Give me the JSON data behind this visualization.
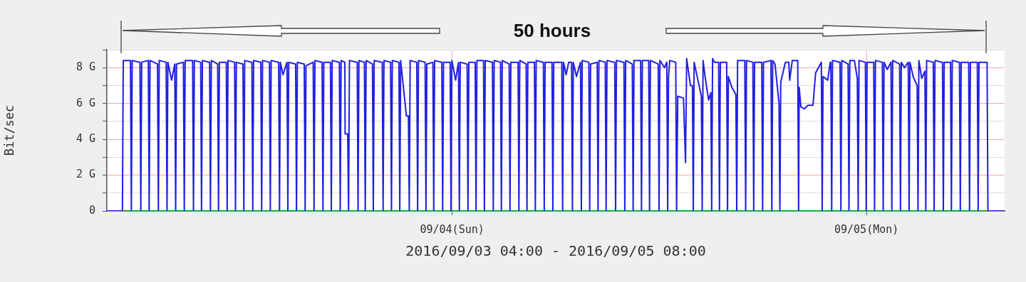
{
  "chart_data": {
    "type": "line",
    "xlabel": "2016/09/03 04:00 - 2016/09/05 08:00",
    "ylabel": "Bit/sec",
    "annotations": [
      "50 hours"
    ],
    "xlim": [
      "2016-09-03T04:00",
      "2016-09-05T08:00"
    ],
    "xticks": [
      {
        "value": "2016-09-04",
        "label": "09/04(Sun)"
      },
      {
        "value": "2016-09-05",
        "label": "09/05(Mon)"
      }
    ],
    "ylim": [
      0,
      9
    ],
    "yticks": [
      {
        "value": 0,
        "label": "0"
      },
      {
        "value": 1,
        "label": null
      },
      {
        "value": 2,
        "label": "2 G"
      },
      {
        "value": 3,
        "label": null
      },
      {
        "value": 4,
        "label": "4 G"
      },
      {
        "value": 5,
        "label": null
      },
      {
        "value": 6,
        "label": "6 G"
      },
      {
        "value": 7,
        "label": null
      },
      {
        "value": 8,
        "label": "8 G"
      },
      {
        "value": 9,
        "label": null
      }
    ],
    "grid": true,
    "marker": "none",
    "line_style": "solid",
    "series": [
      {
        "color": "#00a000",
        "x": [
          "2016-09-03T04:00",
          "2016-09-05T08:00"
        ],
        "values": [
          0,
          0
        ]
      },
      {
        "color": "#1f1fe0",
        "x": [
          "2016-09-03T04:00",
          "2016-09-03T04:54",
          "2016-09-03T04:57",
          "2016-09-03T05:22",
          "2016-09-03T05:25",
          "2016-09-03T05:28",
          "2016-09-03T05:55",
          "2016-09-03T05:58",
          "2016-09-03T06:01",
          "2016-09-03T06:24",
          "2016-09-03T06:27",
          "2016-09-03T06:30",
          "2016-09-03T06:56",
          "2016-09-03T06:59",
          "2016-09-03T07:02",
          "2016-09-03T07:26",
          "2016-09-03T07:29",
          "2016-09-03T07:32",
          "2016-09-03T07:45",
          "2016-09-03T07:56",
          "2016-09-03T07:59",
          "2016-09-03T08:02",
          "2016-09-03T08:26",
          "2016-09-03T08:29",
          "2016-09-03T08:32",
          "2016-09-03T08:58",
          "2016-09-03T09:01",
          "2016-09-03T09:04",
          "2016-09-03T09:26",
          "2016-09-03T09:29",
          "2016-09-03T09:32",
          "2016-09-03T09:57",
          "2016-09-03T10:00",
          "2016-09-03T10:03",
          "2016-09-03T10:25",
          "2016-09-03T10:28",
          "2016-09-03T10:31",
          "2016-09-03T10:55",
          "2016-09-03T10:58",
          "2016-09-03T11:01",
          "2016-09-03T11:24",
          "2016-09-03T11:27",
          "2016-09-03T11:30",
          "2016-09-03T11:53",
          "2016-09-03T11:56",
          "2016-09-03T11:59",
          "2016-09-03T12:24",
          "2016-09-03T12:27",
          "2016-09-03T12:30",
          "2016-09-03T12:55",
          "2016-09-03T12:58",
          "2016-09-03T13:01",
          "2016-09-03T13:25",
          "2016-09-03T13:28",
          "2016-09-03T13:31",
          "2016-09-03T13:57",
          "2016-09-03T14:00",
          "2016-09-03T14:03",
          "2016-09-03T14:12",
          "2016-09-03T14:26",
          "2016-09-03T14:29",
          "2016-09-03T14:32",
          "2016-09-03T14:56",
          "2016-09-03T14:59",
          "2016-09-03T15:02",
          "2016-09-03T15:26",
          "2016-09-03T15:29",
          "2016-09-03T15:32",
          "2016-09-03T15:57",
          "2016-09-03T16:00",
          "2016-09-03T16:03",
          "2016-09-03T16:28",
          "2016-09-03T16:31",
          "2016-09-03T16:34",
          "2016-09-03T16:57",
          "2016-09-03T17:00",
          "2016-09-03T17:03",
          "2016-09-03T17:28",
          "2016-09-03T17:31",
          "2016-09-03T17:34",
          "2016-09-03T17:47",
          "2016-09-03T17:48",
          "2016-09-03T17:57",
          "2016-09-03T18:00",
          "2016-09-03T18:03",
          "2016-09-03T18:30",
          "2016-09-03T18:33",
          "2016-09-03T18:36",
          "2016-09-03T18:55",
          "2016-09-03T18:58",
          "2016-09-03T19:01",
          "2016-09-03T19:23",
          "2016-09-03T19:26",
          "2016-09-03T19:29",
          "2016-09-03T19:57",
          "2016-09-03T20:00",
          "2016-09-03T20:03",
          "2016-09-03T20:26",
          "2016-09-03T20:29",
          "2016-09-03T20:32",
          "2016-09-03T20:55",
          "2016-09-03T20:58",
          "2016-09-03T21:01",
          "2016-09-03T21:21",
          "2016-09-03T21:28",
          "2016-09-03T21:31",
          "2016-09-03T21:34",
          "2016-09-03T21:57",
          "2016-09-03T22:00",
          "2016-09-03T22:03",
          "2016-09-03T22:26",
          "2016-09-03T22:29",
          "2016-09-03T22:32",
          "2016-09-03T22:53",
          "2016-09-03T22:56",
          "2016-09-03T22:59",
          "2016-09-03T23:24",
          "2016-09-03T23:27",
          "2016-09-03T23:30",
          "2016-09-03T23:53",
          "2016-09-03T23:56",
          "2016-09-03T23:59",
          "2016-09-04T00:12",
          "2016-09-04T00:22",
          "2016-09-04T00:25",
          "2016-09-04T00:28",
          "2016-09-04T00:52",
          "2016-09-04T00:55",
          "2016-09-04T00:58",
          "2016-09-04T01:20",
          "2016-09-04T01:23",
          "2016-09-04T01:26",
          "2016-09-04T01:49",
          "2016-09-04T01:52",
          "2016-09-04T01:55",
          "2016-09-04T02:20",
          "2016-09-04T02:23",
          "2016-09-04T02:26",
          "2016-09-04T02:48",
          "2016-09-04T02:51",
          "2016-09-04T02:54",
          "2016-09-04T03:18",
          "2016-09-04T03:21",
          "2016-09-04T03:24",
          "2016-09-04T03:49",
          "2016-09-04T03:52",
          "2016-09-04T03:55",
          "2016-09-04T04:17",
          "2016-09-04T04:20",
          "2016-09-04T04:23",
          "2016-09-04T04:46",
          "2016-09-04T04:49",
          "2016-09-04T04:52",
          "2016-09-04T05:17",
          "2016-09-04T05:20",
          "2016-09-04T05:23",
          "2016-09-04T05:47",
          "2016-09-04T05:50",
          "2016-09-04T05:53",
          "2016-09-04T06:21",
          "2016-09-04T06:24",
          "2016-09-04T06:27",
          "2016-09-04T06:36",
          "2016-09-04T06:45",
          "2016-09-04T06:55",
          "2016-09-04T06:58",
          "2016-09-04T07:01",
          "2016-09-04T07:12",
          "2016-09-04T07:26",
          "2016-09-04T07:29",
          "2016-09-04T07:32",
          "2016-09-04T07:55",
          "2016-09-04T07:58",
          "2016-09-04T08:01",
          "2016-09-04T08:24",
          "2016-09-04T08:27",
          "2016-09-04T08:30",
          "2016-09-04T08:52",
          "2016-09-04T08:55",
          "2016-09-04T08:58",
          "2016-09-04T09:25",
          "2016-09-04T09:28",
          "2016-09-04T09:31",
          "2016-09-04T09:57",
          "2016-09-04T10:00",
          "2016-09-04T10:03",
          "2016-09-04T10:26",
          "2016-09-04T10:29",
          "2016-09-04T10:32",
          "2016-09-04T10:55",
          "2016-09-04T10:58",
          "2016-09-04T11:01",
          "2016-09-04T11:23",
          "2016-09-04T11:26",
          "2016-09-04T11:29",
          "2016-09-04T11:56",
          "2016-09-04T11:59",
          "2016-09-04T12:02",
          "2016-09-04T12:18",
          "2016-09-04T12:26",
          "2016-09-04T12:29",
          "2016-09-04T12:32",
          "2016-09-04T12:36",
          "2016-09-04T12:57",
          "2016-09-04T13:00",
          "2016-09-04T13:04",
          "2016-09-04T13:24",
          "2016-09-04T13:31",
          "2016-09-04T13:35",
          "2016-09-04T13:48",
          "2016-09-04T13:55",
          "2016-09-04T13:58",
          "2016-09-04T14:01",
          "2016-09-04T14:26",
          "2016-09-04T14:29",
          "2016-09-04T14:32",
          "2016-09-04T14:39",
          "2016-09-04T14:51",
          "2016-09-04T14:59",
          "2016-09-04T15:02",
          "2016-09-04T15:05",
          "2016-09-04T15:12",
          "2016-09-04T15:26",
          "2016-09-04T15:29",
          "2016-09-04T15:32",
          "2016-09-04T15:54",
          "2016-09-04T15:57",
          "2016-09-04T16:00",
          "2016-09-04T16:12",
          "2016-09-04T16:26",
          "2016-09-04T16:29",
          "2016-09-04T16:32",
          "2016-09-04T16:57",
          "2016-09-04T17:00",
          "2016-09-04T17:03",
          "2016-09-04T17:25",
          "2016-09-04T17:28",
          "2016-09-04T17:31",
          "2016-09-04T17:56",
          "2016-09-04T17:59",
          "2016-09-04T18:02",
          "2016-09-04T18:28",
          "2016-09-04T18:31",
          "2016-09-04T18:34",
          "2016-09-04T18:42",
          "2016-09-04T18:56",
          "2016-09-04T18:59",
          "2016-09-04T19:02",
          "2016-09-04T19:18",
          "2016-09-04T19:30",
          "2016-09-04T19:33",
          "2016-09-04T19:42",
          "2016-09-04T20:01",
          "2016-09-04T20:04",
          "2016-09-04T20:06",
          "2016-09-04T20:12",
          "2016-09-04T20:24",
          "2016-09-04T20:36",
          "2016-09-04T20:54",
          "2016-09-04T21:03",
          "2016-09-04T21:23",
          "2016-09-04T21:26",
          "2016-09-04T21:29",
          "2016-09-04T21:45",
          "2016-09-04T21:54",
          "2016-09-04T21:56",
          "2016-09-04T21:59",
          "2016-09-04T22:02",
          "2016-09-04T22:28",
          "2016-09-04T22:31",
          "2016-09-04T22:34",
          "2016-09-04T22:56",
          "2016-09-04T22:59",
          "2016-09-04T23:02",
          "2016-09-04T23:18",
          "2016-09-04T23:28",
          "2016-09-04T23:31",
          "2016-09-04T23:34",
          "2016-09-04T23:56",
          "2016-09-04T23:59",
          "2016-09-05T00:02",
          "2016-09-05T00:25",
          "2016-09-05T00:28",
          "2016-09-05T00:31",
          "2016-09-05T00:55",
          "2016-09-05T00:58",
          "2016-09-05T01:01",
          "2016-09-05T01:12",
          "2016-09-05T01:25",
          "2016-09-05T01:28",
          "2016-09-05T01:31",
          "2016-09-05T01:55",
          "2016-09-05T01:58",
          "2016-09-05T02:01",
          "2016-09-05T02:12",
          "2016-09-05T02:25",
          "2016-09-05T02:28",
          "2016-09-05T02:31",
          "2016-09-05T02:42",
          "2016-09-05T02:56",
          "2016-09-05T02:59",
          "2016-09-05T03:02",
          "2016-09-05T03:12",
          "2016-09-05T03:23",
          "2016-09-05T03:26",
          "2016-09-05T03:29",
          "2016-09-05T03:52",
          "2016-09-05T03:55",
          "2016-09-05T03:58",
          "2016-09-05T04:24",
          "2016-09-05T04:27",
          "2016-09-05T04:30",
          "2016-09-05T04:52",
          "2016-09-05T04:55",
          "2016-09-05T04:58",
          "2016-09-05T05:23",
          "2016-09-05T05:26",
          "2016-09-05T05:29",
          "2016-09-05T05:55",
          "2016-09-05T05:58",
          "2016-09-05T06:01",
          "2016-09-05T06:25",
          "2016-09-05T06:28",
          "2016-09-05T06:31",
          "2016-09-05T06:59",
          "2016-09-05T07:02",
          "2016-09-05T08:00"
        ],
        "values": [
          0,
          0,
          8.4,
          8.4,
          0,
          8.4,
          8.3,
          0,
          8.3,
          8.4,
          0,
          8.4,
          8.2,
          0,
          8.4,
          8.3,
          0,
          8.3,
          7.3,
          8.2,
          0,
          8.2,
          8.3,
          0,
          8.4,
          8.4,
          0,
          8.4,
          8.3,
          0,
          8.4,
          8.3,
          0,
          8.4,
          8.2,
          0,
          8.3,
          8.3,
          0,
          8.4,
          8.3,
          0,
          8.3,
          8.2,
          0,
          8.4,
          8.3,
          0,
          8.4,
          8.3,
          0,
          8.4,
          8.3,
          0,
          8.4,
          8.3,
          0,
          8.3,
          7.6,
          8.3,
          0,
          8.3,
          8.2,
          0,
          8.3,
          8.2,
          0,
          8.1,
          8.3,
          0,
          8.4,
          8.3,
          0,
          8.3,
          8.3,
          0,
          8.4,
          8.3,
          0,
          8.4,
          8.3,
          4.3,
          4.3,
          0,
          8.4,
          8.3,
          0,
          8.4,
          8.3,
          0,
          8.4,
          8.2,
          0,
          8.4,
          8.3,
          0,
          8.4,
          8.3,
          0,
          8.4,
          8.3,
          0,
          8.4,
          5.3,
          5.3,
          0,
          8.4,
          8.3,
          0,
          8.4,
          8.3,
          0,
          8.2,
          8.3,
          0,
          8.4,
          8.3,
          0,
          8.3,
          8.3,
          0,
          8.4,
          7.3,
          8.3,
          0,
          8.3,
          8.2,
          0,
          8.3,
          8.3,
          0,
          8.4,
          8.4,
          0,
          8.4,
          8.3,
          0,
          8.4,
          8.3,
          0,
          8.4,
          8.2,
          0,
          8.3,
          8.3,
          0,
          8.4,
          8.2,
          0,
          8.3,
          8.3,
          0,
          8.4,
          8.3,
          0,
          8.3,
          8.3,
          0,
          8.3,
          8.3,
          0,
          8.3,
          7.6,
          8.3,
          8.3,
          0,
          8.3,
          7.5,
          8.3,
          0,
          8.4,
          8.3,
          0,
          8.2,
          8.3,
          0,
          8.4,
          8.3,
          0,
          8.4,
          8.3,
          0,
          8.4,
          8.3,
          0,
          8.4,
          8.2,
          0,
          8.4,
          8.4,
          0,
          8.4,
          8.4,
          0,
          8.4,
          8.2,
          0,
          8.4,
          8,
          8.3,
          0,
          7.5,
          8.4,
          8.3,
          0,
          6.4,
          6.3,
          2.7,
          8.5,
          7,
          7,
          0,
          8.3,
          6.4,
          0,
          8.4,
          7.5,
          6.2,
          6.6,
          0,
          8.5,
          8.3,
          8.3,
          0,
          8.3,
          8.3,
          0,
          7.5,
          6.9,
          6.5,
          0,
          8.4,
          8.4,
          0,
          8.4,
          8.3,
          0,
          8.3,
          8.3,
          0,
          8.3,
          8.4,
          0,
          8.4,
          8.2,
          6,
          0,
          7.2,
          8.3,
          8.3,
          7.3,
          8.4,
          8.4,
          0,
          6.9,
          5.8,
          5.7,
          5.9,
          5.9,
          7.7,
          8.3,
          0,
          7.5,
          7.3,
          8.3,
          8.3,
          0,
          8.4,
          8.3,
          0,
          8.4,
          8.2,
          0,
          8.4,
          8.4,
          7.4,
          0,
          8.4,
          8.3,
          0,
          8.3,
          8.3,
          0,
          8.4,
          8.3,
          0,
          8.3,
          7.9,
          8.3,
          0,
          8.4,
          8.2,
          0,
          8.3,
          8,
          8.3,
          0,
          8.3,
          7.5,
          7,
          0,
          8.4,
          7.4,
          7.8,
          0,
          8.4,
          8.3,
          0,
          8.4,
          8.3,
          0,
          8.3,
          8.3,
          0,
          8.4,
          8.3,
          0,
          8.3,
          8.3,
          0,
          8.3,
          8.3,
          0,
          8.3,
          8.3,
          0,
          0
        ]
      }
    ]
  }
}
